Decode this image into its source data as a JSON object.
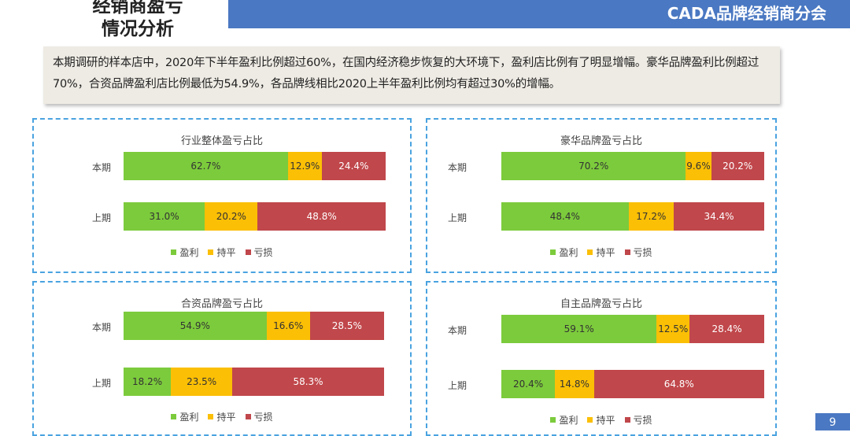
{
  "header": {
    "title_line1": "经销商盈亏",
    "title_line2": "情况分析",
    "brand": "CADA品牌经销商分会"
  },
  "summary": "本期调研的样本店中，2020年下半年盈利比例超过60%，在国内经济稳步恢复的大环境下，盈利店比例有了明显增幅。豪华品牌盈利比例超过70%，合资品牌盈利店比例最低为54.9%，各品牌线相比2020上半年盈利比例均有超过30%的增幅。",
  "page_number": "9",
  "colors": {
    "profit": "#7ccb3c",
    "breakeven": "#fbbf05",
    "loss": "#c0474b"
  },
  "chart_data": [
    {
      "type": "bar",
      "stacked": "100%",
      "orientation": "horizontal",
      "title": "行业整体盈亏占比",
      "categories": [
        "本期",
        "上期"
      ],
      "series": [
        {
          "name": "盈利",
          "values": [
            62.7,
            31.0
          ],
          "labels": [
            "62.7%",
            "31.0%"
          ]
        },
        {
          "name": "持平",
          "values": [
            12.9,
            20.2
          ],
          "labels": [
            "12.9%",
            "20.2%"
          ]
        },
        {
          "name": "亏损",
          "values": [
            24.4,
            48.8
          ],
          "labels": [
            "24.4%",
            "48.8%"
          ]
        }
      ],
      "legend": "bottom"
    },
    {
      "type": "bar",
      "stacked": "100%",
      "orientation": "horizontal",
      "title": "豪华品牌盈亏占比",
      "categories": [
        "本期",
        "上期"
      ],
      "series": [
        {
          "name": "盈利",
          "values": [
            70.2,
            48.4
          ],
          "labels": [
            "70.2%",
            "48.4%"
          ]
        },
        {
          "name": "持平",
          "values": [
            9.6,
            17.2
          ],
          "labels": [
            "9.6%",
            "17.2%"
          ]
        },
        {
          "name": "亏损",
          "values": [
            20.2,
            34.4
          ],
          "labels": [
            "20.2%",
            "34.4%"
          ]
        }
      ],
      "legend": "bottom"
    },
    {
      "type": "bar",
      "stacked": "100%",
      "orientation": "horizontal",
      "title": "合资品牌盈亏占比",
      "categories": [
        "本期",
        "上期"
      ],
      "series": [
        {
          "name": "盈利",
          "values": [
            54.9,
            18.2
          ],
          "labels": [
            "54.9%",
            "18.2%"
          ]
        },
        {
          "name": "持平",
          "values": [
            16.6,
            23.5
          ],
          "labels": [
            "16.6%",
            "23.5%"
          ]
        },
        {
          "name": "亏损",
          "values": [
            28.5,
            58.3
          ],
          "labels": [
            "28.5%",
            "58.3%"
          ]
        }
      ],
      "legend": "bottom"
    },
    {
      "type": "bar",
      "stacked": "100%",
      "orientation": "horizontal",
      "title": "自主品牌盈亏占比",
      "categories": [
        "本期",
        "上期"
      ],
      "series": [
        {
          "name": "盈利",
          "values": [
            59.1,
            20.4
          ],
          "labels": [
            "59.1%",
            "20.4%"
          ]
        },
        {
          "name": "持平",
          "values": [
            12.5,
            14.8
          ],
          "labels": [
            "12.5%",
            "14.8%"
          ]
        },
        {
          "name": "亏损",
          "values": [
            28.4,
            64.8
          ],
          "labels": [
            "28.4%",
            "64.8%"
          ]
        }
      ],
      "legend": "bottom"
    }
  ]
}
